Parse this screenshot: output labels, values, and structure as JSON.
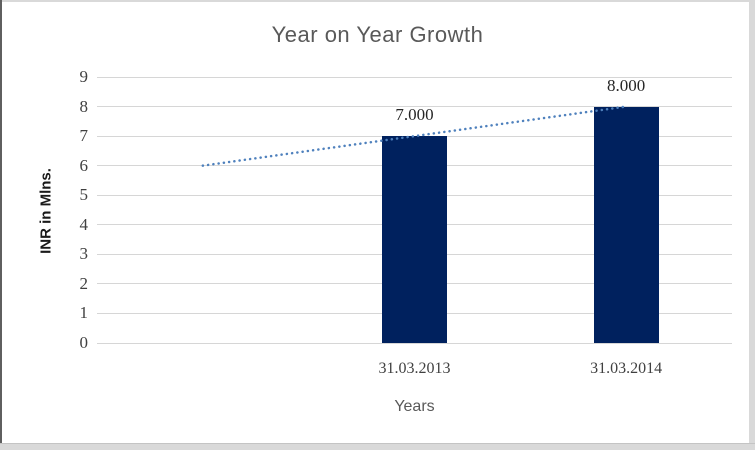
{
  "chart_data": {
    "type": "bar",
    "title": "Year on Year Growth",
    "xlabel": "Years",
    "ylabel": "INR in Mlns.",
    "categories": [
      "31.03.2013",
      "31.03.2014"
    ],
    "values": [
      7,
      8
    ],
    "data_labels": [
      "7.000",
      "8.000"
    ],
    "ylim": [
      0,
      9
    ],
    "ytick_step": 1,
    "yticks": [
      0,
      1,
      2,
      3,
      4,
      5,
      6,
      7,
      8,
      9
    ],
    "grid": true,
    "legend": "none",
    "bar_color": "#00215E",
    "gridline_color": "#D6D6D6",
    "tick_color": "#404040",
    "title_color": "#595959",
    "trendline": {
      "type": "linear",
      "style": "dotted",
      "color": "#4F81BD",
      "values": [
        6,
        7,
        8
      ],
      "description": "dotted linear trend from 6 (one period before first bar) rising to 8 at last bar"
    }
  }
}
